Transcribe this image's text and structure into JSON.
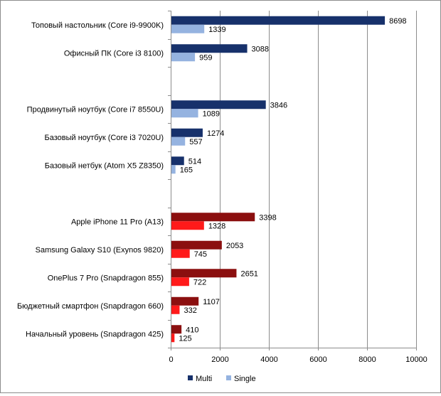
{
  "chart_data": {
    "type": "bar",
    "orientation": "horizontal",
    "title": "",
    "xlabel": "",
    "ylabel": "",
    "xlim": [
      0,
      10000
    ],
    "x_ticks": [
      0,
      2000,
      4000,
      6000,
      8000,
      10000
    ],
    "x_tick_labels": [
      "0",
      "2000",
      "4000",
      "6000",
      "8000",
      "10000"
    ],
    "grid": "vertical",
    "legend_position": "bottom",
    "categories": [
      "Топовый настольник (Core i9-9900K)",
      "Офисный ПК (Core i3 8100)",
      "",
      "Продвинутый ноутбук (Core i7 8550U)",
      "Базовый ноутбук (Core i3 7020U)",
      "Базовый нетбук (Atom X5 Z8350)",
      "",
      "Apple iPhone 11 Pro (A13)",
      "Samsung Galaxy S10 (Exynos 9820)",
      "OnePlus 7 Pro (Snapdragon 855)",
      "Бюджетный смартфон (Snapdragon 660)",
      "Начальный уровень (Snapdragon 425)"
    ],
    "series": [
      {
        "name": "Multi",
        "values": [
          8698,
          3088,
          null,
          3846,
          1274,
          514,
          null,
          3398,
          2053,
          2651,
          1107,
          410
        ],
        "value_labels": [
          "8698",
          "3088",
          "",
          "3846",
          "1274",
          "514",
          "",
          "3398",
          "2053",
          "2651",
          "1107",
          "410"
        ],
        "legend_color": "#17316b",
        "colors": [
          "#17316b",
          "#17316b",
          "",
          "#17316b",
          "#17316b",
          "#17316b",
          "",
          "#8b0f0f",
          "#8b0f0f",
          "#8b0f0f",
          "#8b0f0f",
          "#8b0f0f"
        ]
      },
      {
        "name": "Single",
        "values": [
          1339,
          959,
          null,
          1089,
          557,
          165,
          null,
          1328,
          745,
          722,
          332,
          125
        ],
        "value_labels": [
          "1339",
          "959",
          "",
          "1089",
          "557",
          "165",
          "",
          "1328",
          "745",
          "722",
          "332",
          "125"
        ],
        "legend_color": "#95b3e0",
        "colors": [
          "#95b3e0",
          "#95b3e0",
          "",
          "#95b3e0",
          "#95b3e0",
          "#95b3e0",
          "",
          "#ff1a1a",
          "#ff1a1a",
          "#ff1a1a",
          "#ff1a1a",
          "#ff1a1a"
        ]
      }
    ]
  }
}
